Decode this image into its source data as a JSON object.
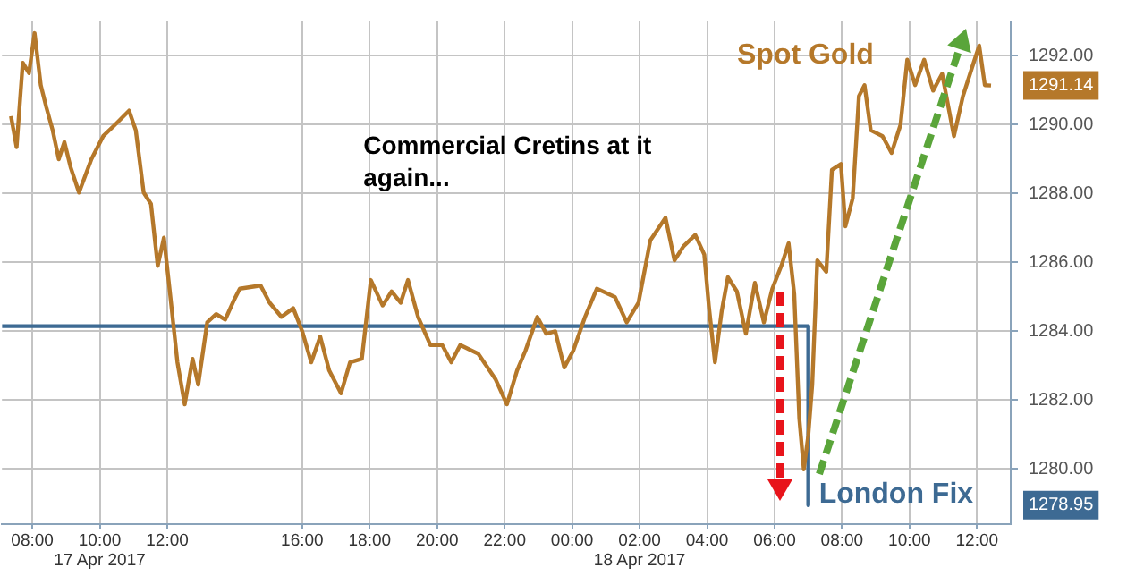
{
  "chart_data": {
    "type": "line",
    "annotations": [
      "Commercial Cretins at it again..."
    ],
    "xlim": [
      "2017-04-17T07:06",
      "2017-04-18T13:00"
    ],
    "xticks": [
      {
        "value": "2017-04-17T08:00",
        "label": "08:00"
      },
      {
        "value": "2017-04-17T10:00",
        "label": "10:00\n17 Apr 2017"
      },
      {
        "value": "2017-04-17T12:00",
        "label": "12:00"
      },
      {
        "value": "2017-04-17T16:00",
        "label": "16:00"
      },
      {
        "value": "2017-04-17T18:00",
        "label": "18:00"
      },
      {
        "value": "2017-04-17T20:00",
        "label": "20:00"
      },
      {
        "value": "2017-04-17T22:00",
        "label": "22:00"
      },
      {
        "value": "2017-04-18T00:00",
        "label": "00:00"
      },
      {
        "value": "2017-04-18T02:00",
        "label": "02:00\n18 Apr 2017"
      },
      {
        "value": "2017-04-18T04:00",
        "label": "04:00"
      },
      {
        "value": "2017-04-18T06:00",
        "label": "06:00"
      },
      {
        "value": "2017-04-18T08:00",
        "label": "08:00"
      },
      {
        "value": "2017-04-18T10:00",
        "label": "10:00"
      },
      {
        "value": "2017-04-18T12:00",
        "label": "12:00"
      }
    ],
    "ylim": [
      1278.4,
      1293.0
    ],
    "yticks": [
      {
        "value": 1278.95,
        "label": "1278.95"
      },
      {
        "value": 1280,
        "label": "1280.00"
      },
      {
        "value": 1282,
        "label": "1282.00"
      },
      {
        "value": 1284,
        "label": "1284.00"
      },
      {
        "value": 1286,
        "label": "1286.00"
      },
      {
        "value": 1288,
        "label": "1288.00"
      },
      {
        "value": 1290,
        "label": "1290.00"
      },
      {
        "value": 1291.14,
        "label": "1291.14"
      },
      {
        "value": 1292,
        "label": "1292.00"
      }
    ],
    "grid": true,
    "line_style": "solid",
    "series": [
      {
        "name": "Spot Gold",
        "color": "#b5782a",
        "x": [
          "2017-04-17T07:22",
          "2017-04-17T07:32",
          "2017-04-17T07:43",
          "2017-04-17T07:54",
          "2017-04-17T08:04",
          "2017-04-17T08:15",
          "2017-04-17T08:25",
          "2017-04-17T08:36",
          "2017-04-17T08:47",
          "2017-04-17T08:57",
          "2017-04-17T09:08",
          "2017-04-17T09:23",
          "2017-04-17T09:45",
          "2017-04-17T10:06",
          "2017-04-17T10:27",
          "2017-04-17T10:52",
          "2017-04-17T11:04",
          "2017-04-17T11:18",
          "2017-04-17T11:31",
          "2017-04-17T11:43",
          "2017-04-17T11:54",
          "2017-04-17T12:04",
          "2017-04-17T12:18",
          "2017-04-17T12:31",
          "2017-04-17T12:45",
          "2017-04-17T12:55",
          "2017-04-17T13:11",
          "2017-04-17T13:27",
          "2017-04-17T13:43",
          "2017-04-17T13:59",
          "2017-04-17T14:09",
          "2017-04-17T14:46",
          "2017-04-17T15:02",
          "2017-04-17T15:23",
          "2017-04-17T15:44",
          "2017-04-17T16:00",
          "2017-04-17T16:16",
          "2017-04-17T16:32",
          "2017-04-17T16:48",
          "2017-04-17T17:09",
          "2017-04-17T17:25",
          "2017-04-17T17:46",
          "2017-04-17T18:02",
          "2017-04-17T18:23",
          "2017-04-17T18:39",
          "2017-04-17T18:55",
          "2017-04-17T19:08",
          "2017-04-17T19:26",
          "2017-04-17T19:48",
          "2017-04-17T20:09",
          "2017-04-17T20:25",
          "2017-04-17T20:41",
          "2017-04-17T21:13",
          "2017-04-17T21:44",
          "2017-04-17T22:04",
          "2017-04-17T22:22",
          "2017-04-17T22:37",
          "2017-04-17T22:58",
          "2017-04-17T23:14",
          "2017-04-17T23:30",
          "2017-04-17T23:46",
          "2017-04-18T00:02",
          "2017-04-18T00:23",
          "2017-04-18T00:44",
          "2017-04-18T01:16",
          "2017-04-18T01:37",
          "2017-04-18T01:58",
          "2017-04-18T02:19",
          "2017-04-18T02:46",
          "2017-04-18T03:02",
          "2017-04-18T03:18",
          "2017-04-18T03:39",
          "2017-04-18T03:55",
          "2017-04-18T04:03",
          "2017-04-18T04:14",
          "2017-04-18T04:26",
          "2017-04-18T04:37",
          "2017-04-18T04:53",
          "2017-04-18T05:09",
          "2017-04-18T05:25",
          "2017-04-18T05:41",
          "2017-04-18T05:56",
          "2017-04-18T06:12",
          "2017-04-18T06:25",
          "2017-04-18T06:35",
          "2017-04-18T06:44",
          "2017-04-18T06:52",
          "2017-04-18T07:00",
          "2017-04-18T07:07",
          "2017-04-18T07:16",
          "2017-04-18T07:32",
          "2017-04-18T07:42",
          "2017-04-18T07:58",
          "2017-04-18T08:06",
          "2017-04-18T08:19",
          "2017-04-18T08:30",
          "2017-04-18T08:40",
          "2017-04-18T08:51",
          "2017-04-18T09:12",
          "2017-04-18T09:28",
          "2017-04-18T09:44",
          "2017-04-18T09:56",
          "2017-04-18T10:10",
          "2017-04-18T10:26",
          "2017-04-18T10:42",
          "2017-04-18T10:58",
          "2017-04-18T11:19",
          "2017-04-18T11:35",
          "2017-04-18T11:51",
          "2017-04-18T12:04",
          "2017-04-18T12:14",
          "2017-04-18T12:25"
        ],
        "values": [
          1290.25,
          1289.35,
          1291.8,
          1291.5,
          1292.66,
          1291.15,
          1290.5,
          1289.85,
          1289.0,
          1289.5,
          1288.77,
          1288.03,
          1289.0,
          1289.67,
          1290.0,
          1290.41,
          1289.84,
          1288.03,
          1287.7,
          1285.9,
          1286.72,
          1285.24,
          1283.1,
          1281.88,
          1283.2,
          1282.45,
          1284.26,
          1284.5,
          1284.34,
          1284.92,
          1285.24,
          1285.33,
          1284.83,
          1284.42,
          1284.67,
          1284.0,
          1283.1,
          1283.85,
          1282.86,
          1282.2,
          1283.1,
          1283.2,
          1285.49,
          1284.75,
          1285.16,
          1284.83,
          1285.49,
          1284.42,
          1283.6,
          1283.6,
          1283.1,
          1283.6,
          1283.35,
          1282.6,
          1281.88,
          1282.86,
          1283.44,
          1284.42,
          1283.93,
          1284.0,
          1282.95,
          1283.44,
          1284.42,
          1285.24,
          1285.0,
          1284.26,
          1284.83,
          1286.64,
          1287.3,
          1286.06,
          1286.47,
          1286.8,
          1286.23,
          1284.75,
          1283.1,
          1284.59,
          1285.57,
          1285.16,
          1283.93,
          1285.41,
          1284.26,
          1285.24,
          1285.9,
          1286.56,
          1285.08,
          1281.47,
          1279.99,
          1280.98,
          1282.45,
          1286.06,
          1285.73,
          1288.69,
          1288.86,
          1287.05,
          1287.87,
          1290.83,
          1291.15,
          1289.84,
          1289.67,
          1289.18,
          1290.0,
          1291.89,
          1291.15,
          1291.89,
          1290.99,
          1291.48,
          1289.67,
          1290.83,
          1291.65,
          1292.3,
          1291.15,
          1291.14
        ]
      },
      {
        "name": "London Fix",
        "color": "#3d6a93",
        "x": [
          "2017-04-17T07:06",
          "2017-04-18T07:00",
          "2017-04-18T07:00"
        ],
        "values": [
          1284.15,
          1284.15,
          1278.95
        ]
      }
    ]
  }
}
